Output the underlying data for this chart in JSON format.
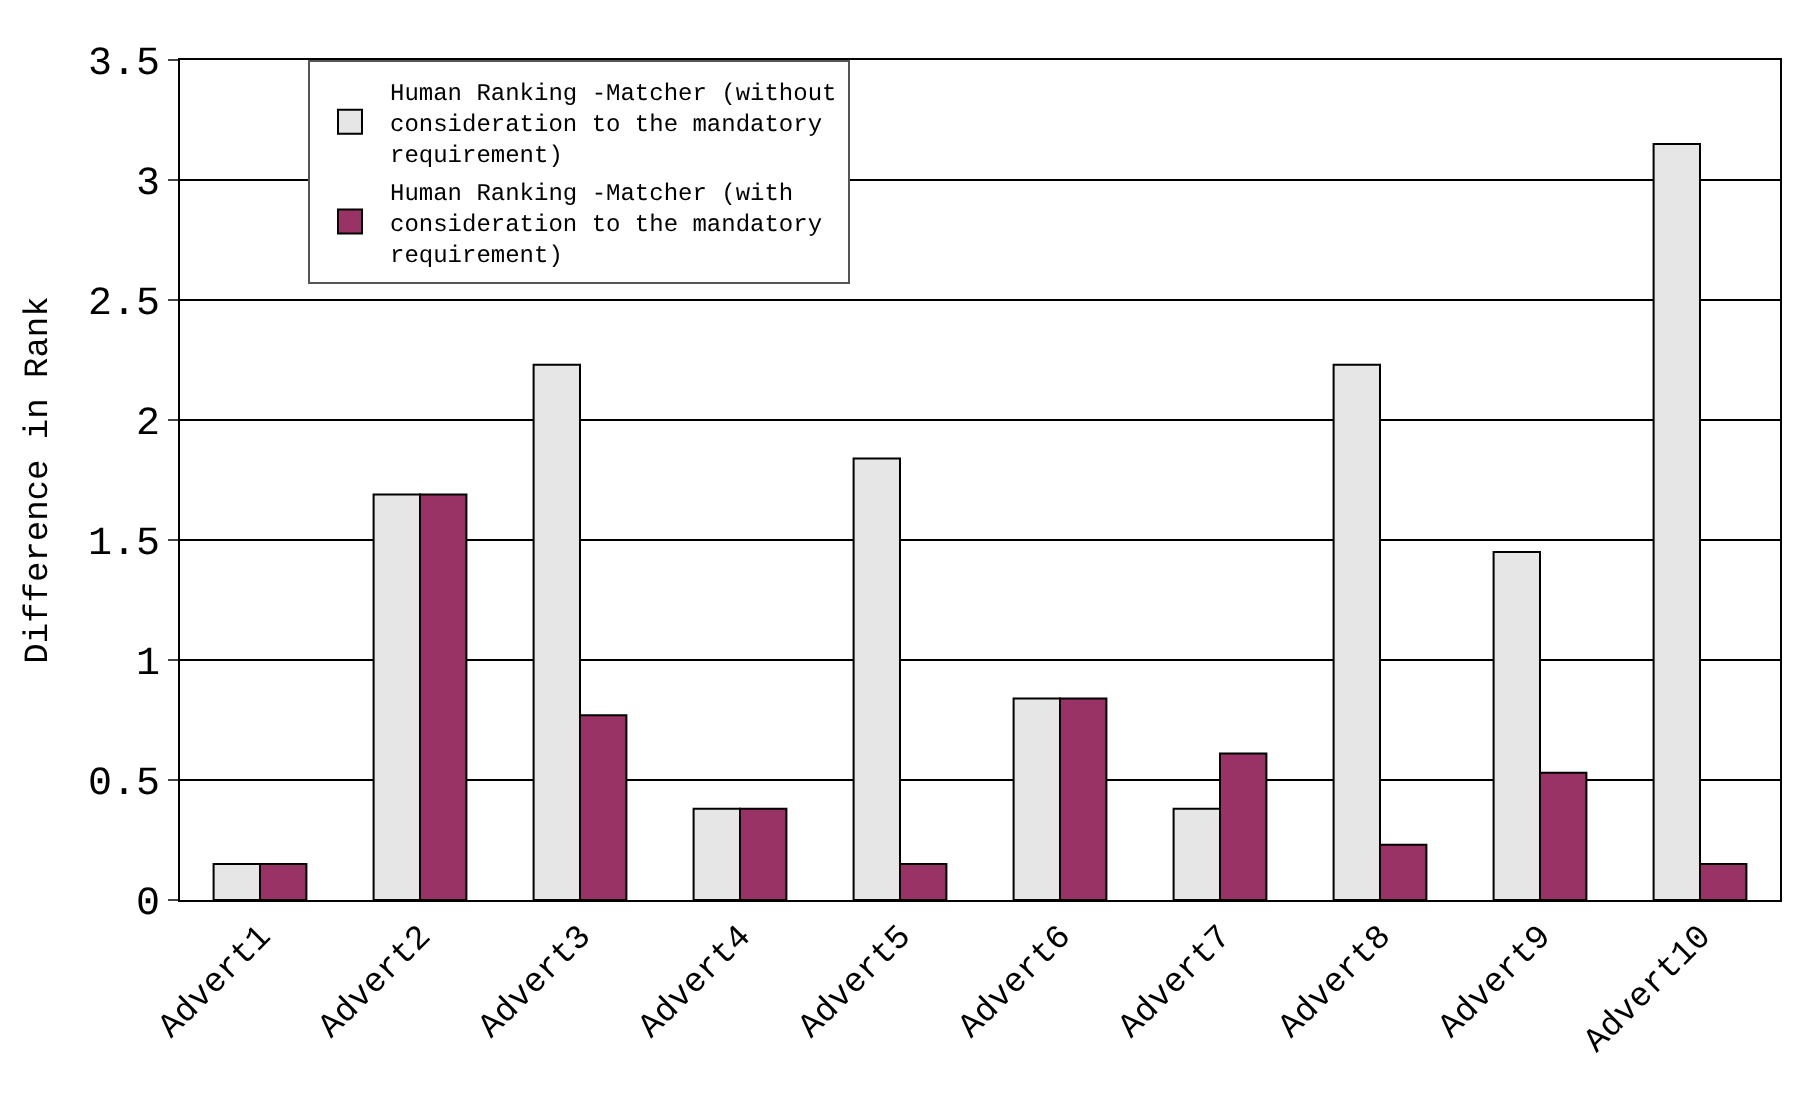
{
  "chart_data": {
    "type": "bar",
    "ylabel": "Difference in Rank",
    "categories": [
      "Advert1",
      "Advert2",
      "Advert3",
      "Advert4",
      "Advert5",
      "Advert6",
      "Advert7",
      "Advert8",
      "Advert9",
      "Advert10"
    ],
    "series": [
      {
        "name": "Human Ranking -Matcher (without consideration to the mandatory requirement)",
        "color": "#e6e6e6",
        "values": [
          0.15,
          1.69,
          2.23,
          0.38,
          1.84,
          0.84,
          0.38,
          2.23,
          1.45,
          3.15
        ]
      },
      {
        "name": "Human Ranking -Matcher (with consideration to the mandatory requirement)",
        "color": "#993366",
        "values": [
          0.15,
          1.69,
          0.77,
          0.38,
          0.15,
          0.84,
          0.61,
          0.23,
          0.53,
          0.15
        ]
      }
    ],
    "ylim": [
      0,
      3.5
    ],
    "yticks": [
      0,
      0.5,
      1,
      1.5,
      2,
      2.5,
      3,
      3.5
    ],
    "grid": "y",
    "legend": "top left"
  }
}
